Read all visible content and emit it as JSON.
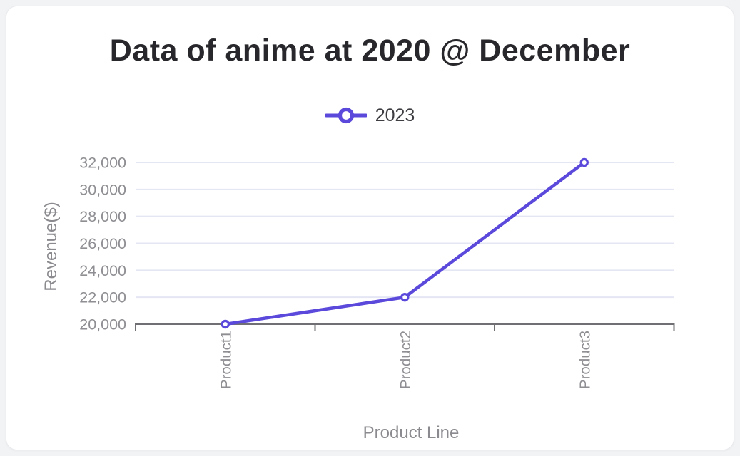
{
  "window": {
    "background_color": "#f2f3f5",
    "card_background_color": "#ffffff"
  },
  "chart_data": {
    "type": "line",
    "title": "Data of anime at 2020 @ December",
    "xlabel": "Product Line",
    "ylabel": "Revenue($)",
    "categories": [
      "Product1",
      "Product2",
      "Product3"
    ],
    "series": [
      {
        "name": "2023",
        "values": [
          20000,
          22000,
          32000
        ]
      }
    ],
    "legend": [
      {
        "label": "2023",
        "marker": "hollow-circle-on-line"
      }
    ],
    "legend_position": "top-center",
    "ylim": [
      20000,
      32000
    ],
    "y_ticks": [
      20000,
      22000,
      24000,
      26000,
      28000,
      30000,
      32000
    ],
    "y_tick_labels": [
      "20,000",
      "22,000",
      "24,000",
      "26,000",
      "28,000",
      "30,000",
      "32,000"
    ],
    "grid": true,
    "colors": {
      "series_line": "#5a49db",
      "marker_fill": "#ffffff",
      "gridline": "#e4e6f4",
      "axis_line": "#6f6f74",
      "tick_label_text": "#8e8e93",
      "axis_title_text": "#8a8a8f",
      "title_text": "#28282c",
      "legend_text": "#3d3d42"
    }
  }
}
